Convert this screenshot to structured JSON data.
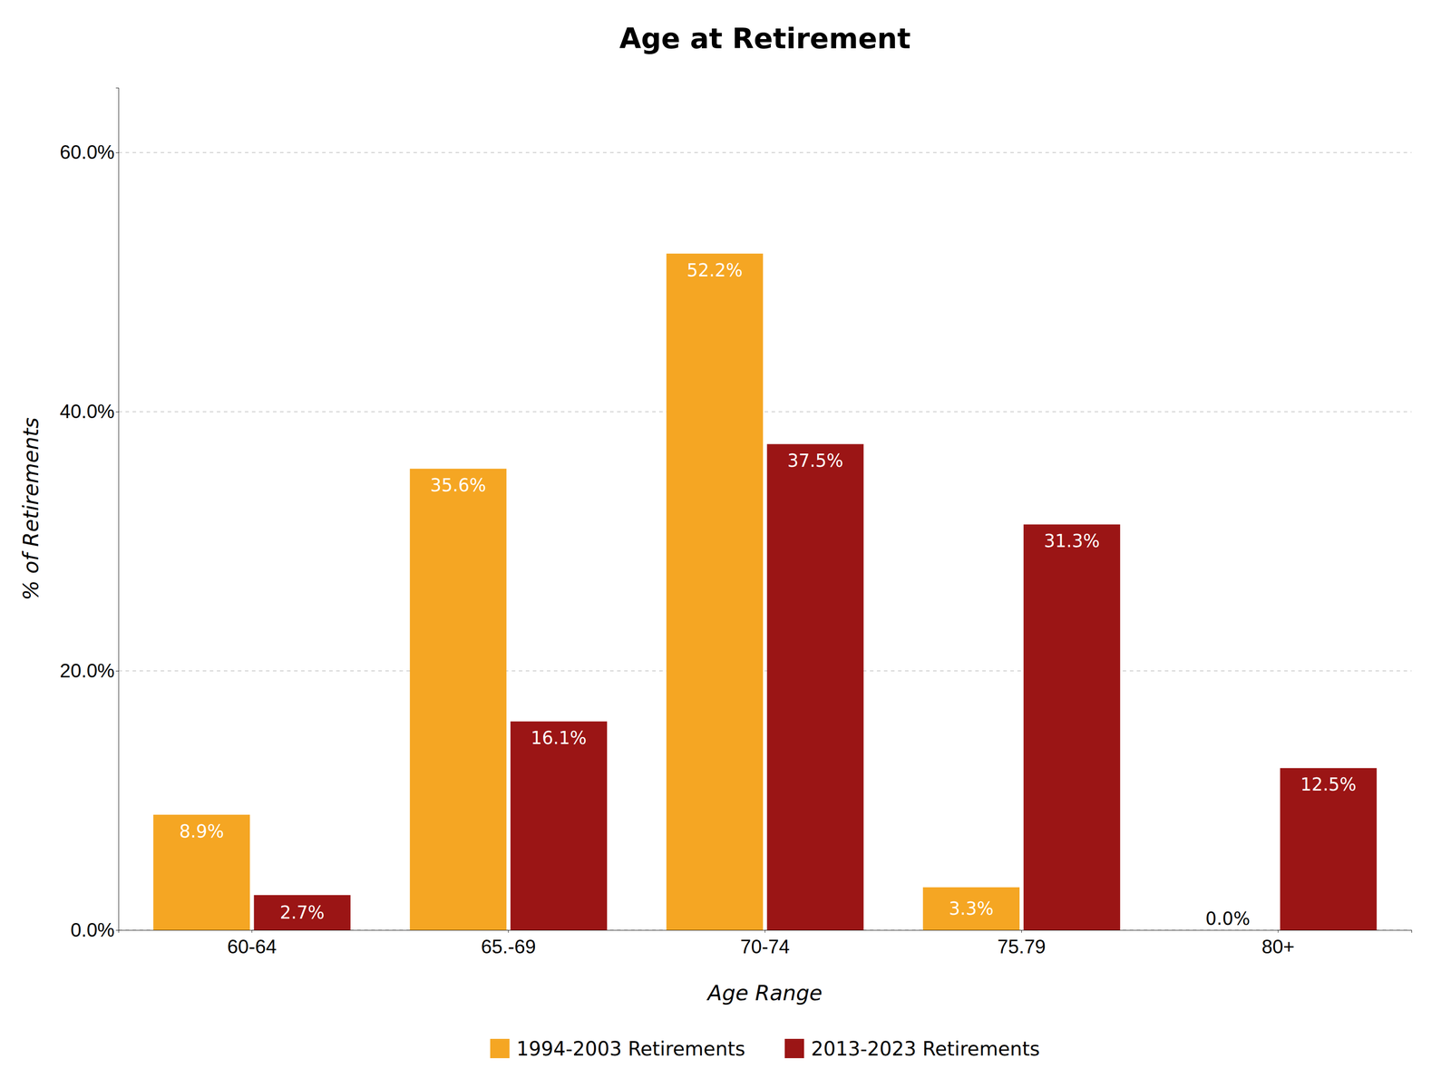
{
  "chart_data": {
    "type": "bar",
    "title": "Age at Retirement",
    "xlabel": "Age Range",
    "ylabel": "% of Retirements",
    "categories": [
      "60-64",
      "65.-69",
      "70-74",
      "75.79",
      "80+"
    ],
    "series": [
      {
        "name": "1994-2003 Retirements",
        "color": "#F5A623",
        "values": [
          8.9,
          35.6,
          52.2,
          3.3,
          0.0
        ],
        "value_labels": [
          "8.9%",
          "35.6%",
          "52.2%",
          "3.3%",
          "0.0%"
        ]
      },
      {
        "name": "2013-2023 Retirements",
        "color": "#9B1515",
        "values": [
          2.7,
          16.1,
          37.5,
          31.3,
          12.5
        ],
        "value_labels": [
          "2.7%",
          "16.1%",
          "37.5%",
          "31.3%",
          "12.5%"
        ]
      }
    ],
    "ylim": [
      0,
      65
    ],
    "yticks": [
      {
        "value": 0.0,
        "label": "0.0%"
      },
      {
        "value": 20.0,
        "label": "20.0%"
      },
      {
        "value": 40.0,
        "label": "40.0%"
      },
      {
        "value": 60.0,
        "label": "60.0%"
      }
    ],
    "grid": true,
    "legend": "bottom",
    "data_labels": true
  }
}
